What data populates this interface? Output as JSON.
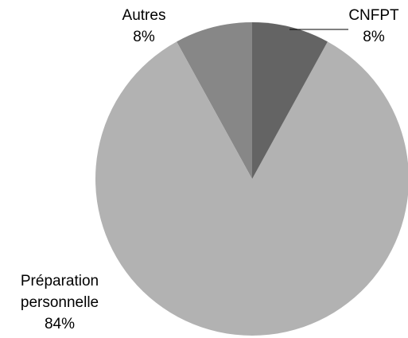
{
  "chart_data": {
    "type": "pie",
    "categories": [
      "CNFPT",
      "Préparation personnelle",
      "Autres"
    ],
    "values": [
      8,
      84,
      8
    ],
    "value_labels": [
      "8%",
      "84%",
      "8%"
    ],
    "colors": [
      "#646464",
      "#b2b2b2",
      "#878787"
    ]
  }
}
